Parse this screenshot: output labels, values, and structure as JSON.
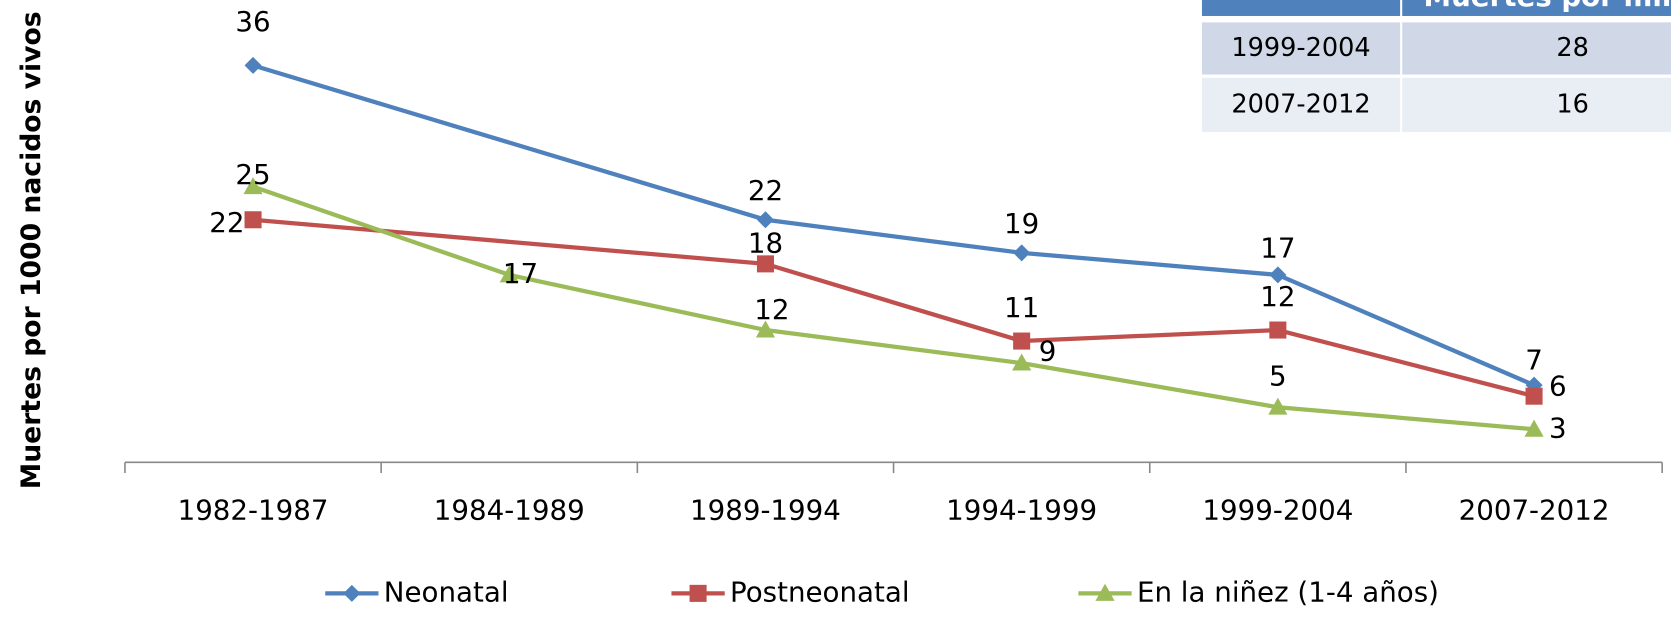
{
  "chart_data": {
    "type": "line",
    "y_label": "Muertes por 1000 nacidos vivos",
    "categories": [
      "1982-1987",
      "1984-1989",
      "1989-1994",
      "1994-1999",
      "1999-2004",
      "2007-2012"
    ],
    "series": [
      {
        "name": "Neonatal",
        "color": "#4f81bd",
        "marker": "diamond",
        "values": [
          36,
          null,
          22,
          19,
          17,
          7
        ]
      },
      {
        "name": "Postneonatal",
        "color": "#c0504d",
        "marker": "square",
        "values": [
          22,
          null,
          18,
          11,
          12,
          6
        ]
      },
      {
        "name": "En la niñez (1-4 años)",
        "color": "#9bbb59",
        "marker": "triangle",
        "values": [
          25,
          17,
          12,
          9,
          5,
          3
        ]
      }
    ],
    "ylim": [
      0,
      40
    ],
    "connect_gaps": true,
    "legend": "bottom"
  },
  "table": {
    "header": "Muertes por mil p",
    "rows": [
      [
        "1999-2004",
        "28"
      ],
      [
        "2007-2012",
        "16"
      ]
    ]
  }
}
